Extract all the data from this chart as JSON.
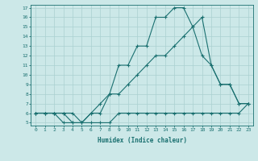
{
  "xlabel": "Humidex (Indice chaleur)",
  "bg_color": "#cce8e8",
  "line_color": "#1a7070",
  "grid_color": "#aad0d0",
  "xlim": [
    -0.5,
    23.5
  ],
  "ylim": [
    4.7,
    17.3
  ],
  "x_ticks": [
    0,
    1,
    2,
    3,
    4,
    5,
    6,
    7,
    8,
    9,
    10,
    11,
    12,
    13,
    14,
    15,
    16,
    17,
    18,
    19,
    20,
    21,
    22,
    23
  ],
  "y_ticks": [
    5,
    6,
    7,
    8,
    9,
    10,
    11,
    12,
    13,
    14,
    15,
    16,
    17
  ],
  "line1_x": [
    0,
    1,
    2,
    3,
    4,
    5,
    6,
    7,
    8,
    9,
    10,
    11,
    12,
    13,
    14,
    15,
    16,
    17,
    18,
    19,
    20,
    21,
    22,
    23
  ],
  "line1_y": [
    6,
    6,
    6,
    5,
    5,
    5,
    5,
    5,
    5,
    6,
    6,
    6,
    6,
    6,
    6,
    6,
    6,
    6,
    6,
    6,
    6,
    6,
    6,
    7
  ],
  "line2_x": [
    0,
    1,
    2,
    3,
    4,
    5,
    6,
    7,
    8,
    9,
    10,
    11,
    12,
    13,
    14,
    15,
    16,
    17,
    18,
    19,
    20,
    21,
    22,
    23
  ],
  "line2_y": [
    6,
    6,
    6,
    6,
    5,
    5,
    6,
    6,
    8,
    8,
    9,
    10,
    11,
    12,
    12,
    13,
    14,
    15,
    16,
    11,
    9,
    9,
    7,
    7
  ],
  "line3_x": [
    0,
    1,
    2,
    3,
    4,
    5,
    6,
    7,
    8,
    9,
    10,
    11,
    12,
    13,
    14,
    15,
    16,
    17,
    18,
    19,
    20,
    21,
    22,
    23
  ],
  "line3_y": [
    6,
    6,
    6,
    6,
    6,
    5,
    6,
    7,
    8,
    11,
    11,
    13,
    13,
    16,
    16,
    17,
    17,
    15,
    12,
    11,
    9,
    9,
    7,
    7
  ],
  "marker": "+",
  "markersize": 3.5,
  "linewidth": 0.8
}
